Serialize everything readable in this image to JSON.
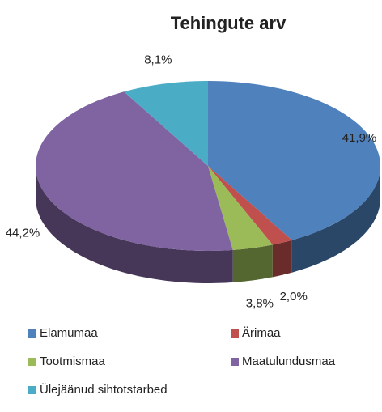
{
  "chart_data": {
    "type": "pie",
    "title": "Tehingute arv",
    "categories": [
      "Elamumaa",
      "Ärimaa",
      "Tootmismaa",
      "Maatulundusmaa",
      "Ülejäänud sihtotstarbed"
    ],
    "values": [
      41.9,
      2.0,
      3.8,
      44.2,
      8.1
    ],
    "value_labels": [
      "41,9%",
      "2,0%",
      "3,8%",
      "44,2%",
      "8,1%"
    ],
    "colors": [
      "#4f81bd",
      "#c0504d",
      "#9bbb59",
      "#8064a2",
      "#4bacc6"
    ]
  }
}
